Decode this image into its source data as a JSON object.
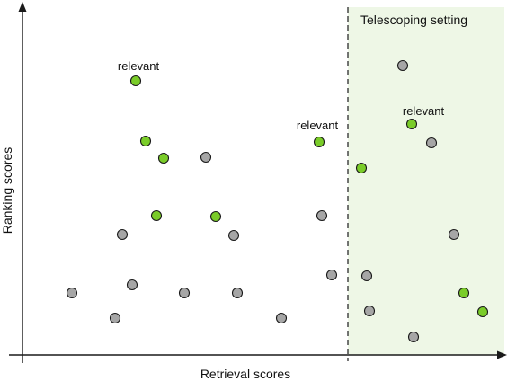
{
  "axes": {
    "x_label": "Retrieval scores",
    "y_label": "Ranking scores"
  },
  "region": {
    "label": "Telescoping setting",
    "fill_color": "#eef7e6",
    "boundary_style": "dashed vertical line"
  },
  "colors": {
    "relevant": "#7acc29",
    "non_relevant": "#a6a6a6",
    "stroke": "#1a1a1a",
    "axis": "#1a1a1a"
  },
  "annotations": [
    {
      "text": "relevant"
    },
    {
      "text": "relevant"
    },
    {
      "text": "relevant"
    }
  ],
  "legend": {
    "relevant": "relevant"
  }
}
